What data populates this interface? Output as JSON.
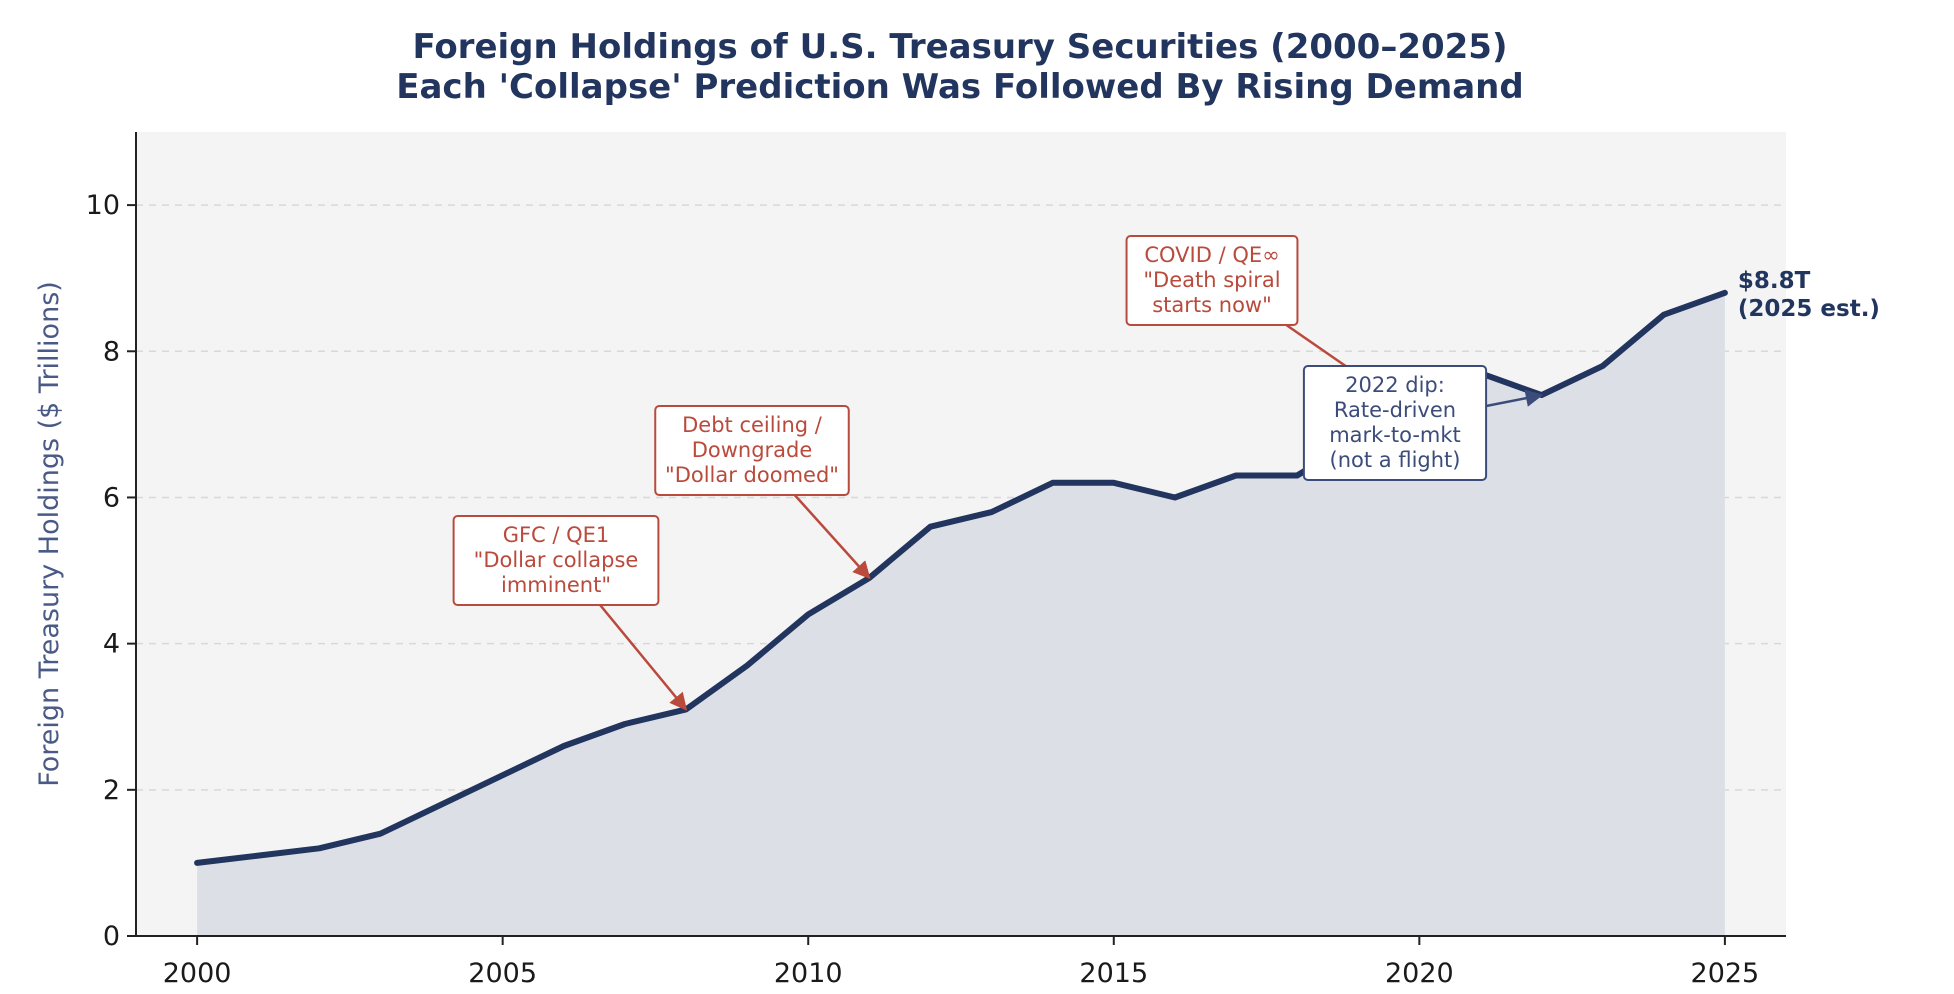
{
  "chart_data": {
    "type": "area",
    "title": "Foreign Holdings of U.S. Treasury Securities (2000–2025)",
    "subtitle": "Each 'Collapse' Prediction Was Followed By Rising Demand",
    "xlabel": "",
    "ylabel": "Foreign Treasury Holdings ($ Trillions)",
    "xlim": [
      1999,
      2026
    ],
    "ylim": [
      0,
      11
    ],
    "xticks": [
      2000,
      2005,
      2010,
      2015,
      2020,
      2025
    ],
    "yticks": [
      0,
      2,
      4,
      6,
      8,
      10
    ],
    "grid": "y-dashed",
    "x": [
      2000,
      2001,
      2002,
      2003,
      2004,
      2005,
      2006,
      2007,
      2008,
      2009,
      2010,
      2011,
      2012,
      2013,
      2014,
      2015,
      2016,
      2017,
      2018,
      2019,
      2020,
      2021,
      2022,
      2023,
      2024,
      2025
    ],
    "series": [
      {
        "values": [
          1.0,
          1.1,
          1.2,
          1.4,
          1.8,
          2.2,
          2.6,
          2.9,
          3.1,
          3.7,
          4.4,
          4.9,
          5.6,
          5.8,
          6.2,
          6.2,
          6.0,
          6.3,
          6.3,
          6.8,
          7.1,
          7.7,
          7.4,
          7.8,
          8.5,
          8.8
        ],
        "color": "#22355e",
        "fill": "#dcdfe5"
      }
    ],
    "end_label": {
      "lines": [
        "$8.8T",
        "(2025 est.)"
      ]
    },
    "annotations": [
      {
        "id": "gfc",
        "lines": [
          "GFC / QE1",
          "\"Dollar collapse",
          "imminent\""
        ],
        "target": [
          2008,
          3.1
        ],
        "style": "warning"
      },
      {
        "id": "debt-ceiling",
        "lines": [
          "Debt ceiling /",
          "Downgrade",
          "\"Dollar doomed\""
        ],
        "target": [
          2011,
          4.9
        ],
        "style": "warning"
      },
      {
        "id": "covid",
        "lines": [
          "COVID / QE∞",
          "\"Death spiral",
          "starts now\""
        ],
        "target": [
          2020,
          7.1
        ],
        "style": "warning"
      },
      {
        "id": "dip-2022",
        "lines": [
          "2022 dip:",
          "Rate-driven",
          "mark-to-mkt",
          "(not a flight)"
        ],
        "target": [
          2022,
          7.4
        ],
        "style": "info"
      }
    ],
    "colors": {
      "line": "#22355e",
      "area": "#dcdfe5",
      "plot_bg": "#f4f4f4",
      "grid": "#d8d8d8",
      "warning": "#b94a3c",
      "info": "#3b4c7a"
    }
  }
}
